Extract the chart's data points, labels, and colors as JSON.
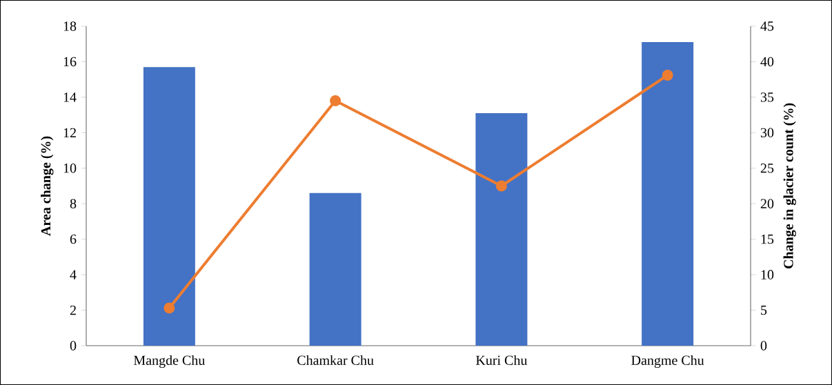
{
  "chart_data": {
    "type": "bar",
    "categories": [
      "Mangde Chu",
      "Chamkar Chu",
      "Kuri Chu",
      "Dangme Chu"
    ],
    "series": [
      {
        "color": "#4472c4",
        "values": [
          15.7,
          8.6,
          13.1,
          17.1
        ]
      },
      {
        "type": "line",
        "axis": "y2",
        "color": "#ed7d31",
        "values": [
          5.3,
          34.5,
          22.5,
          38.1
        ]
      }
    ],
    "ylabel": "Area change (%)",
    "y2label": "Change in glacier count (%)",
    "ylim": [
      0,
      18
    ],
    "yticks": [
      0,
      2,
      4,
      6,
      8,
      10,
      12,
      14,
      16,
      18
    ],
    "y2lim": [
      0,
      45
    ],
    "y2ticks": [
      0,
      5,
      10,
      15,
      20,
      25,
      30,
      35,
      40,
      45
    ],
    "marker": "circle"
  }
}
